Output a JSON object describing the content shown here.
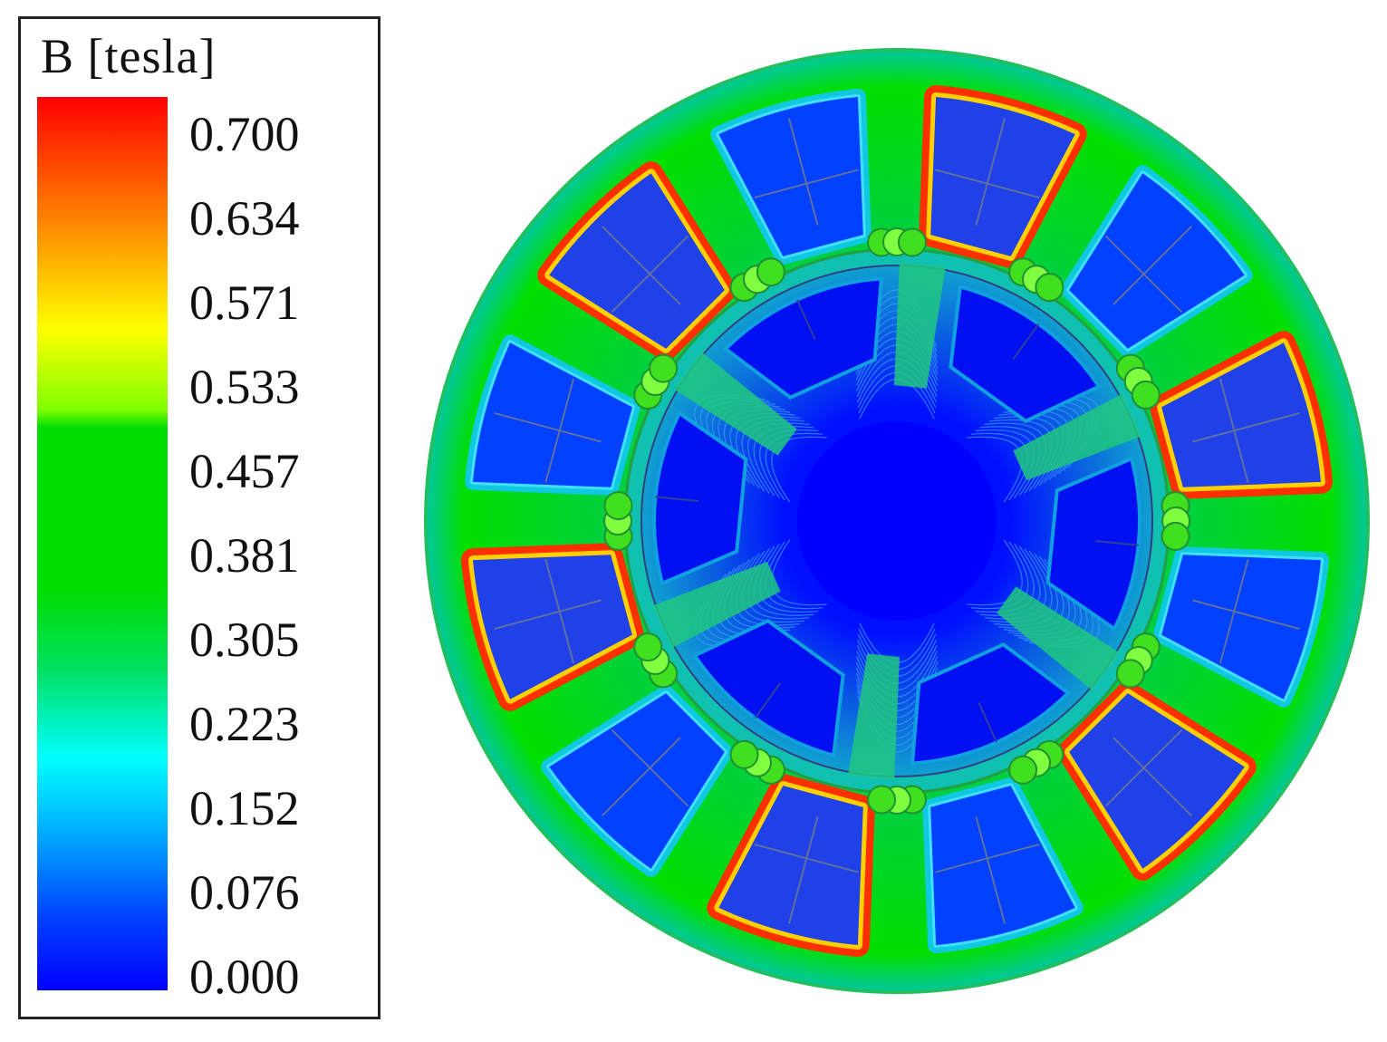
{
  "legend": {
    "title": "B [tesla]",
    "ticks": [
      "0.700",
      "0.634",
      "0.571",
      "0.533",
      "0.457",
      "0.381",
      "0.305",
      "0.223",
      "0.152",
      "0.076",
      "0.000"
    ],
    "colormap": [
      "#ff0000",
      "#ff8c00",
      "#ffff00",
      "#00e000",
      "#00e000",
      "#00ff00",
      "#00ffff",
      "#0080ff",
      "#0000ff"
    ]
  },
  "figure": {
    "type": "magnetic-flux-density-map",
    "stator_slots": 12,
    "rotor_magnets": 6,
    "colors": {
      "field_low": "#0000ff",
      "field_mid": "#00e000",
      "field_high": "#ff0000",
      "field_edge": "#ffff00"
    }
  }
}
